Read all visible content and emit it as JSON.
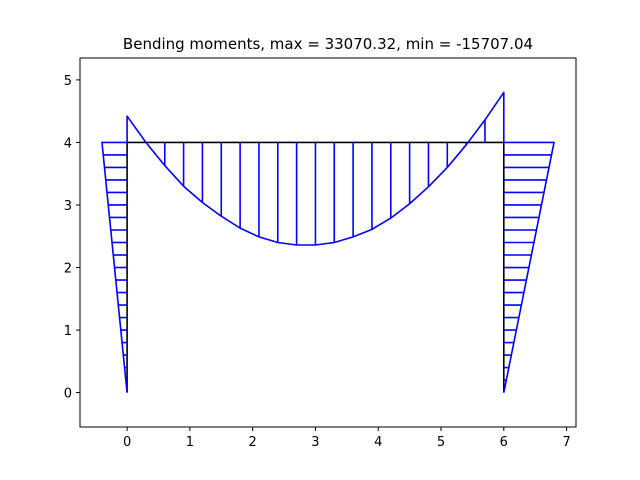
{
  "chart_data": {
    "type": "line",
    "title": "Bending moments, max = 33070.32, min = -15707.04",
    "xlabel": "",
    "ylabel": "",
    "xlim": [
      -0.75,
      7.15
    ],
    "ylim": [
      -0.55,
      5.35
    ],
    "x_ticks": [
      0,
      1,
      2,
      3,
      4,
      5,
      6,
      7
    ],
    "y_ticks": [
      0,
      1,
      2,
      3,
      4,
      5
    ],
    "grid": false,
    "legend": "none",
    "colors": {
      "structure": "#000000",
      "diagram": "#0000ff"
    },
    "structure": [
      {
        "name": "left column",
        "x": [
          0,
          0
        ],
        "y": [
          0,
          4
        ]
      },
      {
        "name": "beam",
        "x": [
          0,
          6
        ],
        "y": [
          4,
          4
        ]
      },
      {
        "name": "right column",
        "x": [
          6,
          6
        ],
        "y": [
          4,
          0
        ]
      }
    ],
    "series": [
      {
        "x": [
          0,
          -0.4,
          0
        ],
        "y": [
          0,
          4,
          4
        ]
      },
      {
        "x": [
          0,
          0,
          0.3,
          0.6,
          0.9,
          1.2,
          1.5,
          1.8,
          2.1,
          2.4,
          2.7,
          3.0,
          3.3,
          3.6,
          3.9,
          4.2,
          4.5,
          4.8,
          5.1,
          5.4,
          5.7,
          6.0,
          6.0
        ],
        "y": [
          4,
          4.42,
          4.0,
          3.63,
          3.3,
          3.04,
          2.82,
          2.63,
          2.49,
          2.4,
          2.36,
          2.36,
          2.4,
          2.49,
          2.61,
          2.79,
          3.02,
          3.29,
          3.6,
          3.96,
          4.36,
          4.8,
          4
        ]
      },
      {
        "x": [
          6,
          6.8,
          6
        ],
        "y": [
          4,
          4,
          0
        ]
      }
    ],
    "hatch": {
      "beam_x": [
        0.6,
        0.9,
        1.2,
        1.5,
        1.8,
        2.1,
        2.4,
        2.7,
        3.0,
        3.3,
        3.6,
        3.9,
        4.2,
        4.5,
        4.8,
        5.1,
        5.4,
        5.7
      ],
      "column_y": [
        0.2,
        0.4,
        0.6,
        0.8,
        1.0,
        1.2,
        1.4,
        1.6,
        1.8,
        2.0,
        2.2,
        2.4,
        2.6,
        2.8,
        3.0,
        3.2,
        3.4,
        3.6,
        3.8
      ]
    }
  }
}
